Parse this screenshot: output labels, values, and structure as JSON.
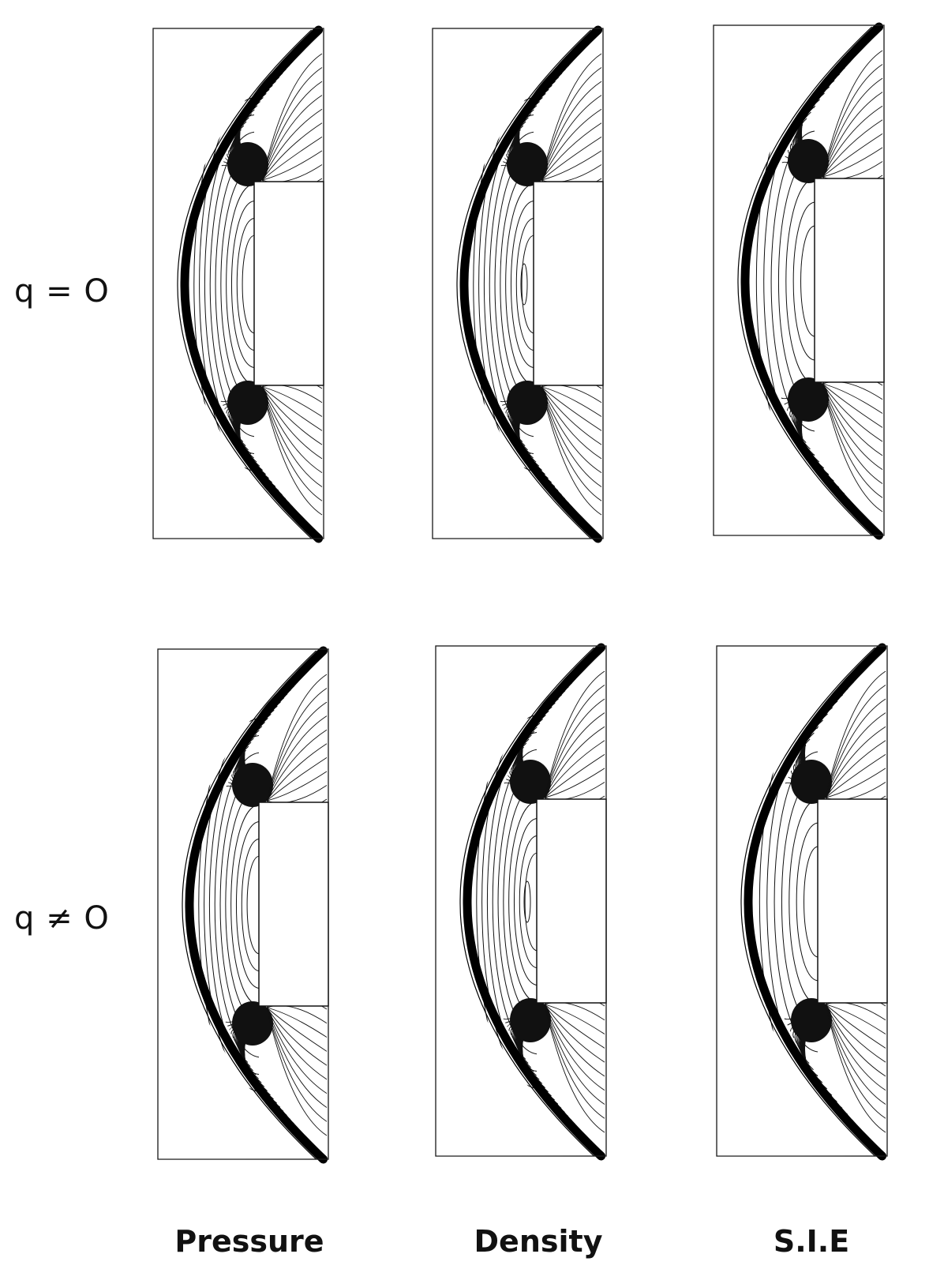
{
  "rows": [
    {
      "label": "q = O"
    },
    {
      "label": "q ≠ O"
    }
  ],
  "columns": [
    {
      "label": "Pressure",
      "variant": "pressure"
    },
    {
      "label": "Density",
      "variant": "density"
    },
    {
      "label": "S.I.E",
      "variant": "sie"
    }
  ]
}
